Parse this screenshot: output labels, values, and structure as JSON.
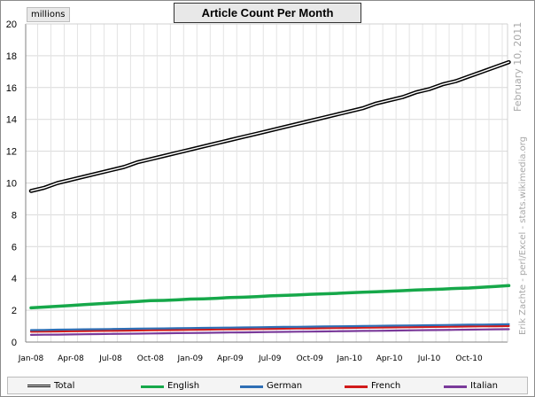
{
  "chart_data": {
    "type": "line",
    "title": "Article Count Per Month",
    "ylabel": "millions",
    "ylim": [
      0,
      20
    ],
    "yticks": [
      0,
      2,
      4,
      6,
      8,
      10,
      12,
      14,
      16,
      18,
      20
    ],
    "grid": true,
    "legend_position": "bottom",
    "x_tick_labels": [
      "Jan-08",
      "Apr-08",
      "Jul-08",
      "Oct-08",
      "Jan-09",
      "Apr-09",
      "Jul-09",
      "Oct-09",
      "Jan-10",
      "Apr-10",
      "Jul-10",
      "Oct-10"
    ],
    "x": [
      "Jan-08",
      "Feb-08",
      "Mar-08",
      "Apr-08",
      "May-08",
      "Jun-08",
      "Jul-08",
      "Aug-08",
      "Sep-08",
      "Oct-08",
      "Nov-08",
      "Dec-08",
      "Jan-09",
      "Feb-09",
      "Mar-09",
      "Apr-09",
      "May-09",
      "Jun-09",
      "Jul-09",
      "Aug-09",
      "Sep-09",
      "Oct-09",
      "Nov-09",
      "Dec-09",
      "Jan-10",
      "Feb-10",
      "Mar-10",
      "Apr-10",
      "May-10",
      "Jun-10",
      "Jul-10",
      "Aug-10",
      "Sep-10",
      "Oct-10",
      "Nov-10",
      "Dec-10",
      "Jan-11"
    ],
    "series": [
      {
        "name": "Total",
        "color": "#000000",
        "style": "double",
        "values": [
          9.5,
          9.7,
          10.0,
          10.2,
          10.4,
          10.6,
          10.8,
          11.0,
          11.3,
          11.5,
          11.7,
          11.9,
          12.1,
          12.3,
          12.5,
          12.7,
          12.9,
          13.1,
          13.3,
          13.5,
          13.7,
          13.9,
          14.1,
          14.3,
          14.5,
          14.7,
          15.0,
          15.2,
          15.4,
          15.7,
          15.9,
          16.2,
          16.4,
          16.7,
          17.0,
          17.3,
          17.6
        ]
      },
      {
        "name": "English",
        "color": "#16a84a",
        "style": "solid",
        "values": [
          2.15,
          2.2,
          2.25,
          2.3,
          2.35,
          2.4,
          2.45,
          2.5,
          2.55,
          2.6,
          2.62,
          2.65,
          2.7,
          2.72,
          2.75,
          2.8,
          2.82,
          2.85,
          2.9,
          2.93,
          2.96,
          3.0,
          3.03,
          3.06,
          3.1,
          3.13,
          3.16,
          3.2,
          3.23,
          3.27,
          3.3,
          3.33,
          3.37,
          3.4,
          3.45,
          3.5,
          3.55
        ]
      },
      {
        "name": "German",
        "color": "#2f6fb5",
        "style": "solid",
        "values": [
          0.75,
          0.76,
          0.78,
          0.79,
          0.8,
          0.81,
          0.82,
          0.83,
          0.84,
          0.85,
          0.86,
          0.87,
          0.88,
          0.89,
          0.9,
          0.91,
          0.92,
          0.93,
          0.94,
          0.95,
          0.96,
          0.97,
          0.98,
          0.99,
          1.0,
          1.01,
          1.02,
          1.03,
          1.04,
          1.05,
          1.06,
          1.07,
          1.08,
          1.09,
          1.1,
          1.11,
          1.12
        ]
      },
      {
        "name": "French",
        "color": "#d11a1a",
        "style": "solid",
        "values": [
          0.65,
          0.66,
          0.67,
          0.68,
          0.69,
          0.7,
          0.71,
          0.72,
          0.73,
          0.74,
          0.75,
          0.76,
          0.77,
          0.78,
          0.79,
          0.8,
          0.81,
          0.82,
          0.83,
          0.84,
          0.85,
          0.86,
          0.87,
          0.88,
          0.89,
          0.9,
          0.91,
          0.92,
          0.93,
          0.94,
          0.95,
          0.96,
          0.97,
          0.98,
          0.99,
          1.0,
          1.01
        ]
      },
      {
        "name": "Italian",
        "color": "#7a3a9a",
        "style": "solid",
        "values": [
          0.45,
          0.46,
          0.47,
          0.48,
          0.49,
          0.5,
          0.51,
          0.52,
          0.53,
          0.54,
          0.55,
          0.56,
          0.57,
          0.58,
          0.59,
          0.6,
          0.61,
          0.62,
          0.63,
          0.64,
          0.65,
          0.66,
          0.67,
          0.68,
          0.69,
          0.7,
          0.71,
          0.72,
          0.73,
          0.74,
          0.75,
          0.76,
          0.77,
          0.78,
          0.79,
          0.8,
          0.81
        ]
      }
    ],
    "annotations": [
      "February 10, 2011",
      "Erik Zachte  -  perl/Excel  -  stats.wikimedia.org"
    ]
  }
}
